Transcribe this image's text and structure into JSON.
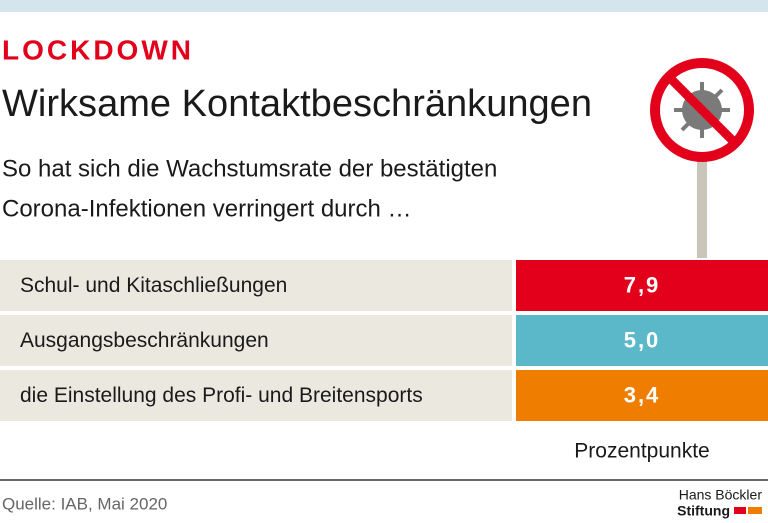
{
  "chart_data": {
    "type": "table",
    "kicker": "LOCKDOWN",
    "title": "Wirksame Kontaktbeschränkungen",
    "subtitle": [
      "So hat sich die Wachstumsrate der bestätigten",
      "Corona-Infektionen verringert durch …"
    ],
    "categories": [
      "Schul- und Kitaschließungen",
      "Ausgangsbeschränkungen",
      "die Einstellung des Profi- und Breitensports"
    ],
    "values": [
      7.9,
      5.0,
      3.4
    ],
    "value_labels": [
      "7,9",
      "5,0",
      "3,4"
    ],
    "colors": [
      "#e3001b",
      "#5bb8c9",
      "#ee7d00"
    ],
    "unit_label": "Prozentpunkte",
    "source": "Quelle: IAB, Mai 2020",
    "logo": [
      "Hans Böckler",
      "Stiftung"
    ]
  }
}
